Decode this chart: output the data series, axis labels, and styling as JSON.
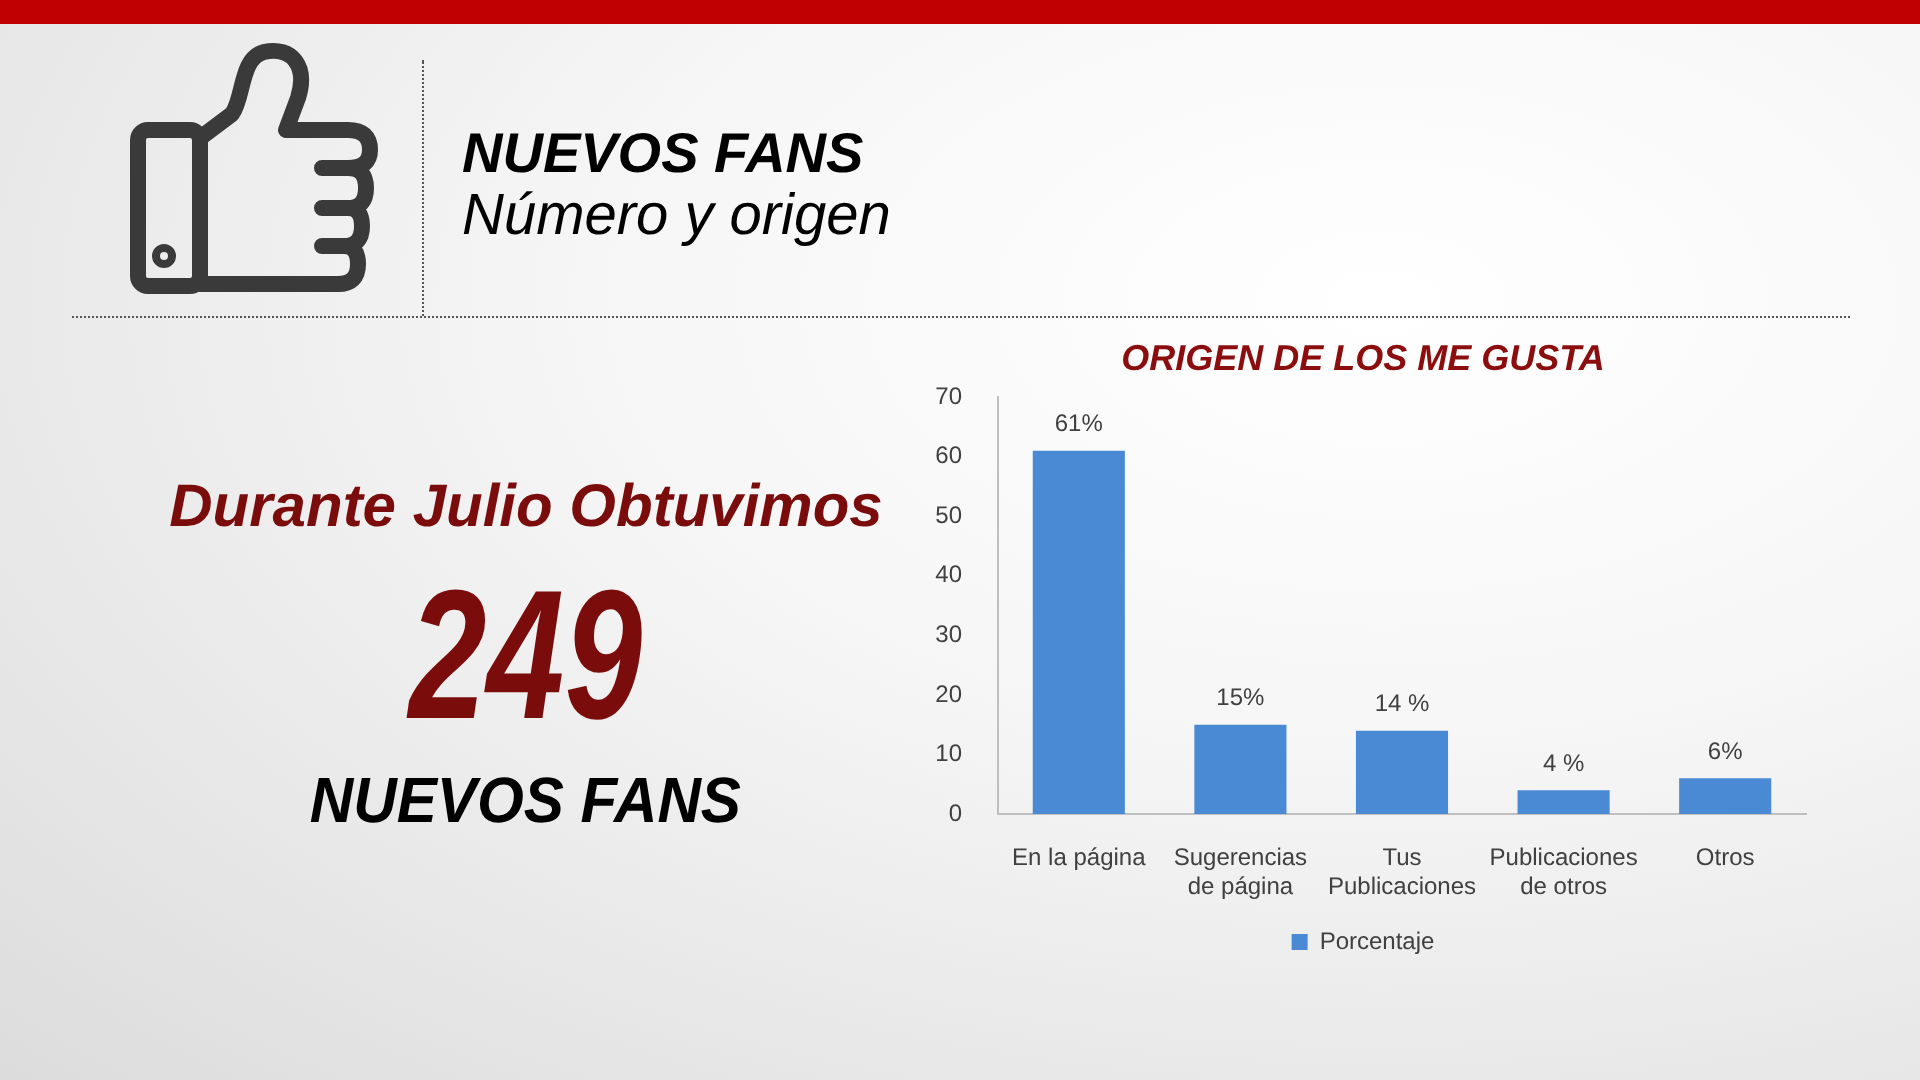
{
  "chart_data": [
    {
      "type": "other",
      "title": "NUEVOS FANS",
      "subtitle": "Número y origen",
      "annotations": [
        "Durante Julio Obtuvimos",
        "249",
        "NUEVOS FANS"
      ]
    },
    {
      "type": "bar",
      "title": "ORIGEN DE LOS ME GUSTA",
      "categories": [
        "En la página",
        "Sugerencias de página",
        "Tus Publicaciones",
        "Publicaciones de otros",
        "Otros"
      ],
      "series": [
        {
          "name": "Porcentaje",
          "color": "#4a8ad4",
          "values": [
            61,
            15,
            14,
            4,
            6
          ],
          "value_labels": [
            "61%",
            "15%",
            "14 %",
            "4 %",
            "6%"
          ]
        }
      ],
      "ylim": [
        0,
        70
      ],
      "yticks": [
        0,
        10,
        20,
        30,
        40,
        50,
        60,
        70
      ],
      "grid": false,
      "legend": "bottom"
    }
  ]
}
